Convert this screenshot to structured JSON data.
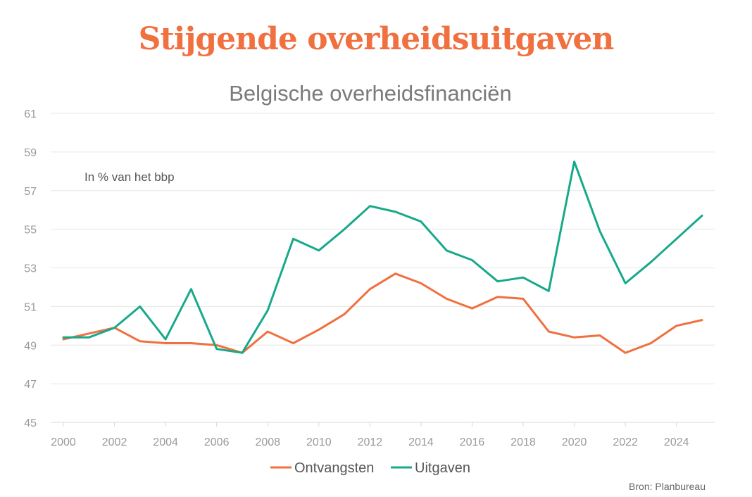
{
  "title": "Stijgende overheidsuitgaven",
  "source": "Bron: Planbureau",
  "colors": {
    "title": "#f0703f",
    "ontvangsten": "#f0703f",
    "uitgaven": "#17a98a",
    "grid": "#e6e6e6"
  },
  "chart_data": {
    "type": "line",
    "title": "Belgische overheidsfinanciën",
    "annotation": "In % van het bbp",
    "xlabel": "",
    "ylabel": "",
    "xlim": [
      2000,
      2025
    ],
    "ylim": [
      45,
      61
    ],
    "y_ticks": [
      45,
      47,
      49,
      51,
      53,
      55,
      57,
      59,
      61
    ],
    "x_ticks": [
      2000,
      2002,
      2004,
      2006,
      2008,
      2010,
      2012,
      2014,
      2016,
      2018,
      2020,
      2022,
      2024
    ],
    "grid": true,
    "legend_position": "bottom",
    "x": [
      2000,
      2001,
      2002,
      2003,
      2004,
      2005,
      2006,
      2007,
      2008,
      2009,
      2010,
      2011,
      2012,
      2013,
      2014,
      2015,
      2016,
      2017,
      2018,
      2019,
      2020,
      2021,
      2022,
      2023,
      2024,
      2025
    ],
    "series": [
      {
        "name": "Ontvangsten",
        "color": "#f0703f",
        "values": [
          49.3,
          49.6,
          49.9,
          49.2,
          49.1,
          49.1,
          49.0,
          48.6,
          49.7,
          49.1,
          49.8,
          50.6,
          51.9,
          52.7,
          52.2,
          51.4,
          50.9,
          51.5,
          51.4,
          49.7,
          49.4,
          49.5,
          48.6,
          49.1,
          50.0,
          50.3
        ]
      },
      {
        "name": "Uitgaven",
        "color": "#17a98a",
        "values": [
          49.4,
          49.4,
          49.9,
          51.0,
          49.3,
          51.9,
          48.8,
          48.6,
          50.8,
          54.5,
          53.9,
          55.0,
          56.2,
          55.9,
          55.4,
          53.9,
          53.4,
          52.3,
          52.5,
          51.8,
          58.5,
          54.9,
          52.2,
          53.3,
          54.5,
          55.7
        ]
      }
    ]
  }
}
